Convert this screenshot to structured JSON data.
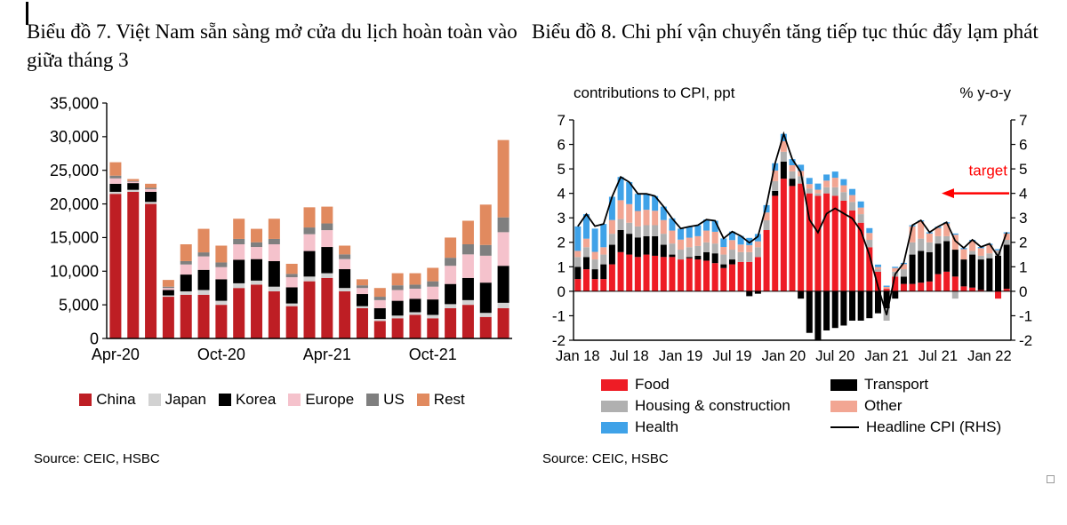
{
  "chart_data": [
    {
      "id": "tourism-arrivals",
      "type": "bar",
      "stacked": true,
      "title": "Biểu đồ 7. Việt Nam sẵn sàng mở cửa du lịch hoàn toàn vào giữa tháng 3",
      "source": "Source: CEIC, HSBC",
      "ylim": [
        0,
        35000
      ],
      "y_ticks": [
        {
          "value": 0,
          "label": "0"
        },
        {
          "value": 5000,
          "label": "5,000"
        },
        {
          "value": 10000,
          "label": "10,000"
        },
        {
          "value": 15000,
          "label": "15,000"
        },
        {
          "value": 20000,
          "label": "20,000"
        },
        {
          "value": 25000,
          "label": "25,000"
        },
        {
          "value": 30000,
          "label": "30,000"
        },
        {
          "value": 35000,
          "label": "35,000"
        }
      ],
      "categories": [
        "Apr-20",
        "May-20",
        "Jun-20",
        "Jul-20",
        "Aug-20",
        "Sep-20",
        "Oct-20",
        "Nov-20",
        "Dec-20",
        "Jan-21",
        "Feb-21",
        "Mar-21",
        "Apr-21",
        "May-21",
        "Jun-21",
        "Jul-21",
        "Aug-21",
        "Sep-21",
        "Oct-21",
        "Nov-21",
        "Dec-21",
        "Jan-22",
        "Feb-22"
      ],
      "x_tick_labels": [
        "Apr-20",
        "Oct-20",
        "Apr-21",
        "Oct-21"
      ],
      "x_tick_indices": [
        0,
        6,
        12,
        18
      ],
      "series": [
        {
          "name": "China",
          "color": "#BE1E24",
          "values": [
            21500,
            21800,
            20000,
            6200,
            6500,
            6500,
            5000,
            7500,
            8000,
            7000,
            4800,
            8500,
            9000,
            7000,
            4500,
            2600,
            3000,
            3500,
            3000,
            4500,
            5000,
            3200,
            4500
          ]
        },
        {
          "name": "Japan",
          "color": "#D2D2D2",
          "values": [
            300,
            300,
            300,
            200,
            500,
            700,
            600,
            700,
            600,
            700,
            400,
            700,
            700,
            500,
            300,
            300,
            400,
            400,
            500,
            600,
            700,
            600,
            800
          ]
        },
        {
          "name": "Korea",
          "color": "#000000",
          "values": [
            1200,
            1000,
            1500,
            800,
            2500,
            3000,
            3200,
            3500,
            3200,
            3800,
            2400,
            3800,
            3900,
            2800,
            1800,
            1600,
            2200,
            2000,
            2300,
            3000,
            3300,
            4500,
            5500
          ]
        },
        {
          "name": "Europe",
          "color": "#F5C2CC",
          "values": [
            800,
            200,
            400,
            300,
            1500,
            2000,
            1800,
            2300,
            1800,
            2500,
            1500,
            2500,
            2500,
            1500,
            900,
            1200,
            1600,
            1500,
            1900,
            2700,
            3500,
            4000,
            5000
          ]
        },
        {
          "name": "US",
          "color": "#7F7F7F",
          "values": [
            400,
            100,
            200,
            200,
            500,
            600,
            700,
            800,
            700,
            800,
            500,
            1000,
            1000,
            700,
            400,
            500,
            700,
            600,
            800,
            1200,
            1500,
            1600,
            2200
          ]
        },
        {
          "name": "Rest",
          "color": "#E18A5F",
          "values": [
            2000,
            300,
            600,
            1000,
            2500,
            3500,
            2500,
            3000,
            2000,
            3000,
            1500,
            3000,
            2500,
            1300,
            900,
            1300,
            1800,
            1700,
            2000,
            3000,
            3500,
            6000,
            11500
          ]
        }
      ],
      "legend_position": "bottom"
    },
    {
      "id": "cpi-contributions",
      "type": "bar",
      "stacked": true,
      "dual_axis": true,
      "title": "Biểu đồ 8. Chi phí vận chuyển tăng tiếp tục thúc đẩy lạm phát",
      "source": "Source: CEIC, HSBC",
      "axis_titles": {
        "left": "contributions to CPI, ppt",
        "right": "% y-o-y"
      },
      "annotation": {
        "text": "target",
        "value": 4,
        "color": "#FF0000"
      },
      "ylim": [
        -2,
        7
      ],
      "y_ticks": [
        {
          "value": -2,
          "label": "-2"
        },
        {
          "value": -1,
          "label": "-1"
        },
        {
          "value": 0,
          "label": "0"
        },
        {
          "value": 1,
          "label": "1"
        },
        {
          "value": 2,
          "label": "2"
        },
        {
          "value": 3,
          "label": "3"
        },
        {
          "value": 4,
          "label": "4"
        },
        {
          "value": 5,
          "label": "5"
        },
        {
          "value": 6,
          "label": "6"
        },
        {
          "value": 7,
          "label": "7"
        }
      ],
      "categories": [
        "Jan 18",
        "Feb 18",
        "Mar 18",
        "Apr 18",
        "May 18",
        "Jun 18",
        "Jul 18",
        "Aug 18",
        "Sep 18",
        "Oct 18",
        "Nov 18",
        "Dec 18",
        "Jan 19",
        "Feb 19",
        "Mar 19",
        "Apr 19",
        "May 19",
        "Jun 19",
        "Jul 19",
        "Aug 19",
        "Sep 19",
        "Oct 19",
        "Nov 19",
        "Dec 19",
        "Jan 20",
        "Feb 20",
        "Mar 20",
        "Apr 20",
        "May 20",
        "Jun 20",
        "Jul 20",
        "Aug 20",
        "Sep 20",
        "Oct 20",
        "Nov 20",
        "Dec 20",
        "Jan 21",
        "Feb 21",
        "Mar 21",
        "Apr 21",
        "May 21",
        "Jun 21",
        "Jul 21",
        "Aug 21",
        "Sep 21",
        "Oct 21",
        "Nov 21",
        "Dec 21",
        "Jan 22",
        "Feb 22",
        "Mar 22"
      ],
      "x_tick_labels": [
        "Jan 18",
        "Jul 18",
        "Jan 19",
        "Jul 19",
        "Jan 20",
        "Jul 20",
        "Jan 21",
        "Jul 21",
        "Jan 22"
      ],
      "x_tick_indices": [
        0,
        6,
        12,
        18,
        24,
        30,
        36,
        42,
        48
      ],
      "series": [
        {
          "name": "Food",
          "color": "#EE1C25",
          "values": [
            0.5,
            0.9,
            0.5,
            0.5,
            1.1,
            1.6,
            1.5,
            1.4,
            1.5,
            1.45,
            1.4,
            1.4,
            1.3,
            1.35,
            1.3,
            1.25,
            1.15,
            0.95,
            1.1,
            1.2,
            1.2,
            1.4,
            2.5,
            3.9,
            4.6,
            4.3,
            4.4,
            4.0,
            3.9,
            4.0,
            3.9,
            3.7,
            3.3,
            2.8,
            1.8,
            0.8,
            0.1,
            0.6,
            0.3,
            0.3,
            0.35,
            0.4,
            0.7,
            0.8,
            0.6,
            0.2,
            0.15,
            0.05,
            0.0,
            -0.3,
            0.1
          ]
        },
        {
          "name": "Transport",
          "color": "#000000",
          "values": [
            0.5,
            0.5,
            0.4,
            0.6,
            0.8,
            0.9,
            0.85,
            0.8,
            0.75,
            0.8,
            0.5,
            0.1,
            0.0,
            0.05,
            0.15,
            0.35,
            0.4,
            0.15,
            0.2,
            0.0,
            -0.2,
            -0.1,
            0.0,
            0.2,
            0.7,
            0.3,
            -0.3,
            -1.7,
            -2.0,
            -1.6,
            -1.5,
            -1.4,
            -1.2,
            -1.2,
            -1.1,
            -0.9,
            -0.7,
            -0.3,
            0.3,
            1.2,
            1.3,
            1.2,
            1.25,
            1.25,
            1.1,
            1.1,
            1.35,
            1.25,
            1.35,
            1.45,
            1.8
          ]
        },
        {
          "name": "Housing & construction",
          "color": "#B0B0B0",
          "values": [
            0.4,
            0.4,
            0.4,
            0.4,
            0.45,
            0.45,
            0.45,
            0.45,
            0.45,
            0.45,
            0.45,
            0.45,
            0.4,
            0.4,
            0.4,
            0.4,
            0.4,
            0.4,
            0.4,
            0.4,
            0.4,
            0.4,
            0.4,
            0.4,
            0.4,
            0.3,
            0.3,
            0.2,
            0.1,
            0.25,
            0.35,
            0.35,
            0.35,
            0.35,
            0.3,
            0.1,
            -0.5,
            0.2,
            0.3,
            0.5,
            0.5,
            0.4,
            0.3,
            0.2,
            -0.3,
            0.0,
            0.15,
            0.15,
            0.2,
            0.2,
            0.2
          ]
        },
        {
          "name": "Other",
          "color": "#F2A693",
          "values": [
            0.25,
            0.35,
            0.31,
            0.3,
            0.56,
            0.77,
            0.76,
            0.63,
            0.63,
            0.59,
            0.56,
            0.53,
            0.41,
            0.39,
            0.4,
            0.48,
            0.48,
            0.31,
            0.39,
            0.31,
            0.28,
            0.24,
            0.32,
            0.43,
            0.43,
            0.25,
            0.22,
            0.18,
            0.15,
            0.27,
            0.39,
            0.28,
            0.28,
            0.27,
            0.28,
            0.09,
            0.08,
            0.15,
            0.21,
            0.65,
            0.7,
            0.36,
            0.34,
            0.52,
            0.61,
            0.42,
            0.4,
            0.31,
            0.34,
            0.02,
            0.26
          ]
        },
        {
          "name": "Health",
          "color": "#3FA2E8",
          "values": [
            1.0,
            1.0,
            0.95,
            0.95,
            0.95,
            0.95,
            0.9,
            0.7,
            0.65,
            0.6,
            0.55,
            0.5,
            0.45,
            0.45,
            0.45,
            0.45,
            0.45,
            0.35,
            0.35,
            0.35,
            0.3,
            0.3,
            0.3,
            0.3,
            0.3,
            0.25,
            0.25,
            0.25,
            0.25,
            0.25,
            0.25,
            0.25,
            0.25,
            0.25,
            0.2,
            0.1,
            0.05,
            0.05,
            0.05,
            0.05,
            0.05,
            0.05,
            0.05,
            0.05,
            0.05,
            0.05,
            0.05,
            0.05,
            0.05,
            0.05,
            0.05
          ]
        }
      ],
      "line_series": {
        "name": "Headline CPI (RHS)",
        "color": "#000000",
        "values": [
          2.65,
          3.15,
          2.66,
          2.75,
          3.86,
          4.67,
          4.46,
          3.98,
          3.98,
          3.89,
          3.46,
          2.98,
          2.56,
          2.64,
          2.7,
          2.93,
          2.88,
          2.16,
          2.44,
          2.26,
          1.98,
          2.24,
          3.52,
          5.23,
          6.43,
          5.4,
          4.87,
          2.93,
          2.4,
          3.17,
          3.39,
          3.18,
          2.98,
          2.47,
          1.48,
          0.19,
          -0.97,
          0.7,
          1.16,
          2.7,
          2.9,
          2.41,
          2.64,
          2.82,
          2.06,
          1.77,
          2.1,
          1.81,
          1.94,
          1.42,
          2.41
        ]
      },
      "legend_columns": [
        [
          {
            "label": "Food",
            "color": "#EE1C25",
            "swatch": "rect"
          },
          {
            "label": "Housing & construction",
            "color": "#B0B0B0",
            "swatch": "rect"
          },
          {
            "label": "Health",
            "color": "#3FA2E8",
            "swatch": "rect"
          }
        ],
        [
          {
            "label": "Transport",
            "color": "#000000",
            "swatch": "rect"
          },
          {
            "label": "Other",
            "color": "#F2A693",
            "swatch": "rect"
          },
          {
            "label": "Headline CPI (RHS)",
            "color": "#000000",
            "swatch": "line"
          }
        ]
      ],
      "legend_position": "bottom"
    }
  ]
}
